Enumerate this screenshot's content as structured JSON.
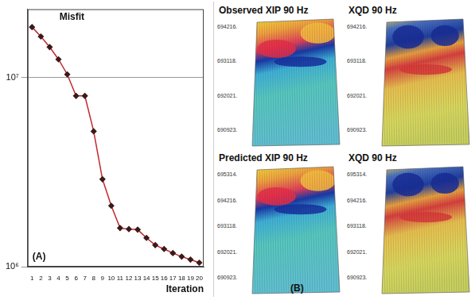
{
  "chart_data": {
    "type": "line",
    "y_label": "Misfit",
    "x_label": "Iteration",
    "panel_label": "(A)",
    "x": [
      1,
      2,
      3,
      4,
      5,
      6,
      7,
      8,
      9,
      10,
      11,
      12,
      13,
      14,
      15,
      16,
      17,
      18,
      19,
      20
    ],
    "values": [
      18500000,
      16500000,
      14500000,
      12500000,
      10400000,
      8000000,
      8000000,
      5200000,
      2900000,
      2100000,
      1600000,
      1580000,
      1570000,
      1420000,
      1300000,
      1240000,
      1180000,
      1130000,
      1090000,
      1050000
    ],
    "color": "#c0282d",
    "marker": "diamond",
    "log": "y",
    "grid": true,
    "xlim": [
      0.5,
      20.5
    ],
    "xticks": [
      1,
      2,
      3,
      4,
      5,
      6,
      7,
      8,
      9,
      10,
      11,
      12,
      13,
      14,
      15,
      16,
      17,
      18,
      19,
      20
    ],
    "ylim": [
      1000000,
      23000000
    ],
    "yticks": [
      {
        "value": 1000000,
        "label": "10⁶"
      },
      {
        "value": 10000000,
        "label": "10⁷"
      }
    ]
  },
  "panel_b": {
    "label": "(B)",
    "maps": [
      {
        "title": "Observed XIP 90 Hz",
        "y_labels": [
          "694216.",
          "693118.",
          "692021.",
          "690923."
        ]
      },
      {
        "title": "XQD 90 Hz",
        "y_labels": [
          "694216.",
          "693118.",
          "692021.",
          "690923."
        ]
      },
      {
        "title": "Predicted XIP 90 Hz",
        "y_labels": [
          "695314.",
          "694216.",
          "693118.",
          "692021.",
          "690923."
        ]
      },
      {
        "title": "XQD 90 Hz",
        "y_labels": [
          "695314.",
          "694216.",
          "693118.",
          "692021.",
          "690923."
        ]
      }
    ]
  }
}
